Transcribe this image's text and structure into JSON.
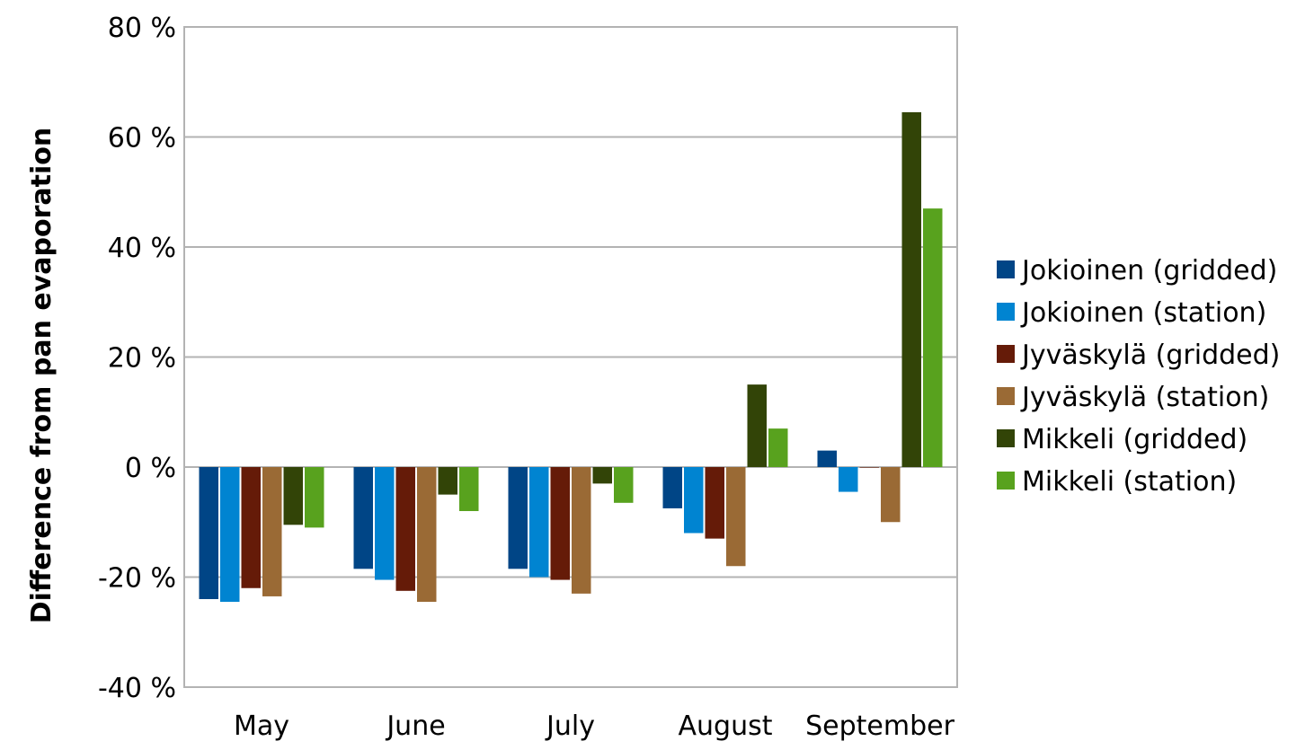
{
  "chart_data": {
    "type": "bar",
    "categories": [
      "May",
      "June",
      "July",
      "August",
      "September"
    ],
    "ylabel": "Difference from pan evaporation",
    "xlabel": "",
    "ylim": [
      -40,
      80
    ],
    "y_ticks": [
      {
        "value": -40,
        "label": "-40 %"
      },
      {
        "value": -20,
        "label": "-20 %"
      },
      {
        "value": 0,
        "label": "0 %"
      },
      {
        "value": 20,
        "label": "20 %"
      },
      {
        "value": 40,
        "label": "40 %"
      },
      {
        "value": 60,
        "label": "60 %"
      },
      {
        "value": 80,
        "label": "80 %"
      }
    ],
    "grid": true,
    "legend_position": "right",
    "series": [
      {
        "name": "Jokioinen (gridded)",
        "color": "#004586",
        "values": [
          -24,
          -18.5,
          -18.5,
          -7.5,
          3
        ]
      },
      {
        "name": "Jokioinen (station)",
        "color": "#0084d1",
        "values": [
          -24.5,
          -20.5,
          -20,
          -12,
          -4.5
        ]
      },
      {
        "name": "Jyväskylä (gridded)",
        "color": "#651b08",
        "values": [
          -22,
          -22.5,
          -20.5,
          -13,
          0
        ]
      },
      {
        "name": "Jyväskylä (station)",
        "color": "#9a6a35",
        "values": [
          -23.5,
          -24.5,
          -23,
          -18,
          -10
        ]
      },
      {
        "name": "Mikkeli (gridded)",
        "color": "#324407",
        "values": [
          -10.5,
          -5,
          -3,
          15,
          64.5
        ]
      },
      {
        "name": "Mikkeli (station)",
        "color": "#58a21e",
        "values": [
          -11,
          -8,
          -6.5,
          7,
          47
        ]
      }
    ]
  }
}
